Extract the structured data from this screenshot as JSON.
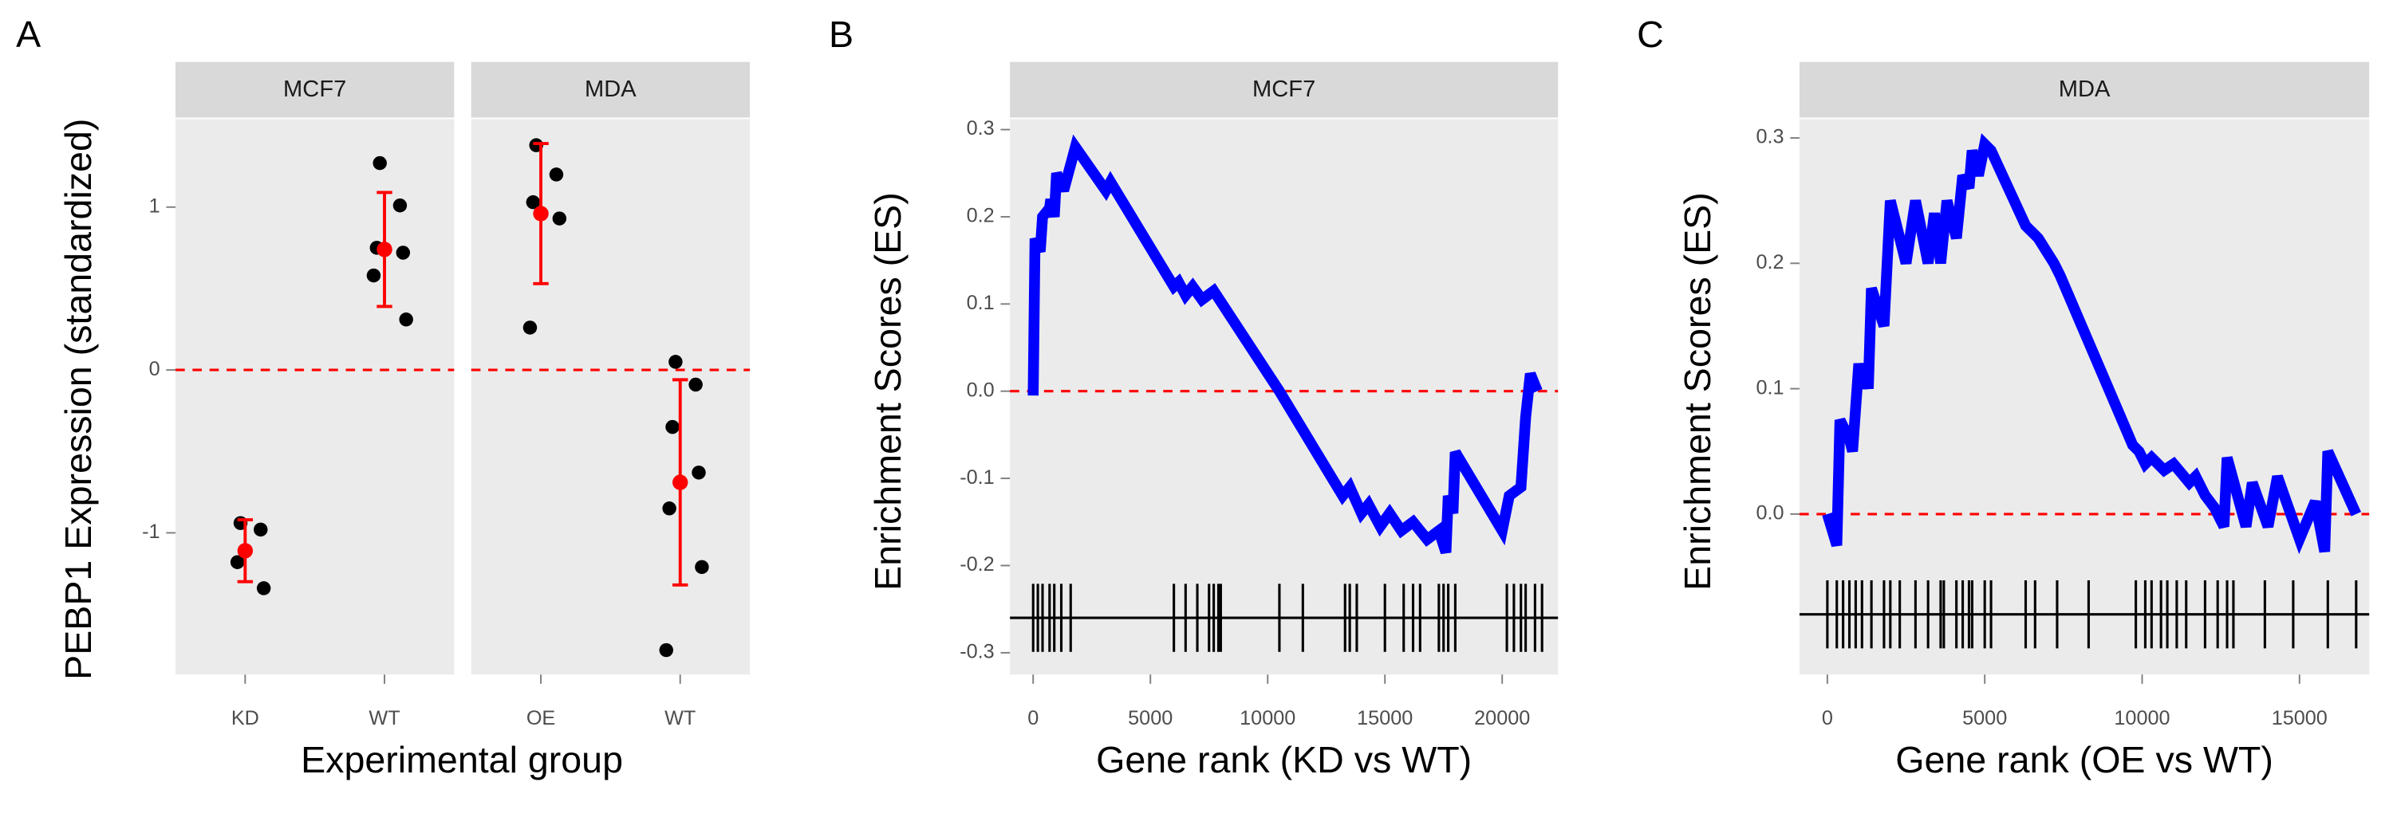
{
  "chart_data": [
    {
      "type": "strip",
      "panel_label": "A",
      "ylabel": "PEBP1 Expression (standardized)",
      "xlabel": "Experimental group",
      "ylim": [
        -1.87,
        1.54
      ],
      "yticks": [
        -1,
        0,
        1
      ],
      "reference_line": 0,
      "point_color": "#000000",
      "mean_color": "#ff0000",
      "reference_color": "#ff0000",
      "facets": [
        {
          "title": "MCF7",
          "groups": [
            {
              "name": "KD",
              "values": [
                -0.94,
                -0.98,
                -1.18,
                -1.34
              ],
              "mean": -1.11,
              "error": 0.19
            },
            {
              "name": "WT",
              "values": [
                1.27,
                1.01,
                0.75,
                0.72,
                0.58,
                0.31
              ],
              "mean": 0.74,
              "error": 0.35
            }
          ]
        },
        {
          "title": "MDA",
          "groups": [
            {
              "name": "OE",
              "values": [
                1.38,
                1.2,
                1.03,
                0.93,
                0.26
              ],
              "mean": 0.96,
              "error": 0.43
            },
            {
              "name": "WT",
              "values": [
                0.05,
                -0.09,
                -0.35,
                -0.63,
                -0.85,
                -1.21,
                -1.72
              ],
              "mean": -0.69,
              "error": 0.63
            }
          ]
        }
      ]
    },
    {
      "type": "line",
      "panel_label": "B",
      "strip": "MCF7",
      "ylabel": "Enrichment Scores (ES)",
      "xlabel": "Gene rank (KD vs WT)",
      "xlim": [
        -990,
        22380
      ],
      "ylim": [
        -0.325,
        0.312
      ],
      "xticks": [
        0,
        5000,
        10000,
        15000,
        20000
      ],
      "yticks": [
        -0.3,
        -0.2,
        -0.1,
        {
          "value": 0,
          "label": "0.0"
        },
        0.1,
        0.2,
        0.3
      ],
      "color": "#0000ff",
      "reference_line": 0,
      "reference_color": "#ff0000",
      "rug_baseline": -0.26,
      "x": [
        0,
        80,
        300,
        400,
        700,
        750,
        900,
        1000,
        1300,
        1500,
        1800,
        3100,
        3300,
        6000,
        6200,
        6500,
        6800,
        7200,
        7700,
        10500,
        13200,
        13500,
        14000,
        14300,
        14800,
        15200,
        15700,
        16200,
        16800,
        17300,
        17600,
        17700,
        17900,
        18000,
        20000,
        20300,
        20800,
        21000,
        21200,
        21500
      ],
      "values": [
        -0.005,
        0.175,
        0.16,
        0.2,
        0.21,
        0.22,
        0.2,
        0.25,
        0.23,
        0.25,
        0.28,
        0.23,
        0.24,
        0.12,
        0.125,
        0.11,
        0.12,
        0.105,
        0.115,
        0.0,
        -0.12,
        -0.11,
        -0.14,
        -0.13,
        -0.155,
        -0.14,
        -0.16,
        -0.15,
        -0.17,
        -0.16,
        -0.185,
        -0.12,
        -0.14,
        -0.07,
        -0.16,
        -0.12,
        -0.11,
        -0.03,
        0.02,
        0.0
      ],
      "hits": [
        0,
        200,
        400,
        700,
        900,
        1200,
        1600,
        6000,
        6500,
        7000,
        7500,
        7700,
        7900,
        8000,
        10500,
        11500,
        13300,
        13500,
        13800,
        15000,
        15800,
        16200,
        16500,
        17300,
        17500,
        17700,
        18000,
        20200,
        20500,
        20800,
        21000,
        21400,
        21700
      ]
    },
    {
      "type": "line",
      "panel_label": "C",
      "strip": "MDA",
      "ylabel": "Enrichment Scores (ES)",
      "xlabel": "Gene rank (OE vs WT)",
      "xlim": [
        -885,
        17215
      ],
      "ylim": [
        -0.128,
        0.315
      ],
      "xticks": [
        0,
        5000,
        10000,
        15000
      ],
      "yticks": [
        {
          "value": 0,
          "label": "0.0"
        },
        0.1,
        0.2,
        0.3
      ],
      "color": "#0000ff",
      "reference_line": 0,
      "reference_color": "#ff0000",
      "rug_baseline": -0.08,
      "x": [
        0,
        300,
        400,
        700,
        800,
        1000,
        1100,
        1200,
        1300,
        1400,
        1800,
        2000,
        2500,
        2800,
        3200,
        3400,
        3600,
        3800,
        4100,
        4300,
        4500,
        4600,
        4800,
        5000,
        5200,
        6300,
        6500,
        6700,
        7200,
        7400,
        9700,
        9900,
        10100,
        10300,
        10700,
        11000,
        11500,
        11700,
        12000,
        12300,
        12600,
        12700,
        13300,
        13500,
        14000,
        14300,
        15000,
        15500,
        15800,
        15900,
        16800
      ],
      "values": [
        0,
        -0.025,
        0.075,
        0.06,
        0.05,
        0.12,
        0.1,
        0.12,
        0.1,
        0.18,
        0.15,
        0.25,
        0.2,
        0.25,
        0.2,
        0.24,
        0.2,
        0.25,
        0.22,
        0.27,
        0.26,
        0.29,
        0.27,
        0.295,
        0.29,
        0.23,
        0.225,
        0.22,
        0.2,
        0.19,
        0.055,
        0.05,
        0.04,
        0.045,
        0.035,
        0.04,
        0.025,
        0.03,
        0.015,
        0.005,
        -0.01,
        0.045,
        -0.01,
        0.025,
        -0.01,
        0.03,
        -0.02,
        0.01,
        -0.03,
        0.05,
        0.0
      ],
      "hits": [
        0,
        300,
        500,
        700,
        900,
        1100,
        1400,
        1800,
        2000,
        2300,
        2800,
        3200,
        3600,
        3700,
        4100,
        4300,
        4500,
        4600,
        5000,
        5200,
        6300,
        6600,
        7300,
        8300,
        9800,
        10100,
        10300,
        10600,
        10800,
        11100,
        11400,
        12000,
        12400,
        12700,
        12900,
        13900,
        14800,
        15900,
        16800
      ]
    }
  ]
}
